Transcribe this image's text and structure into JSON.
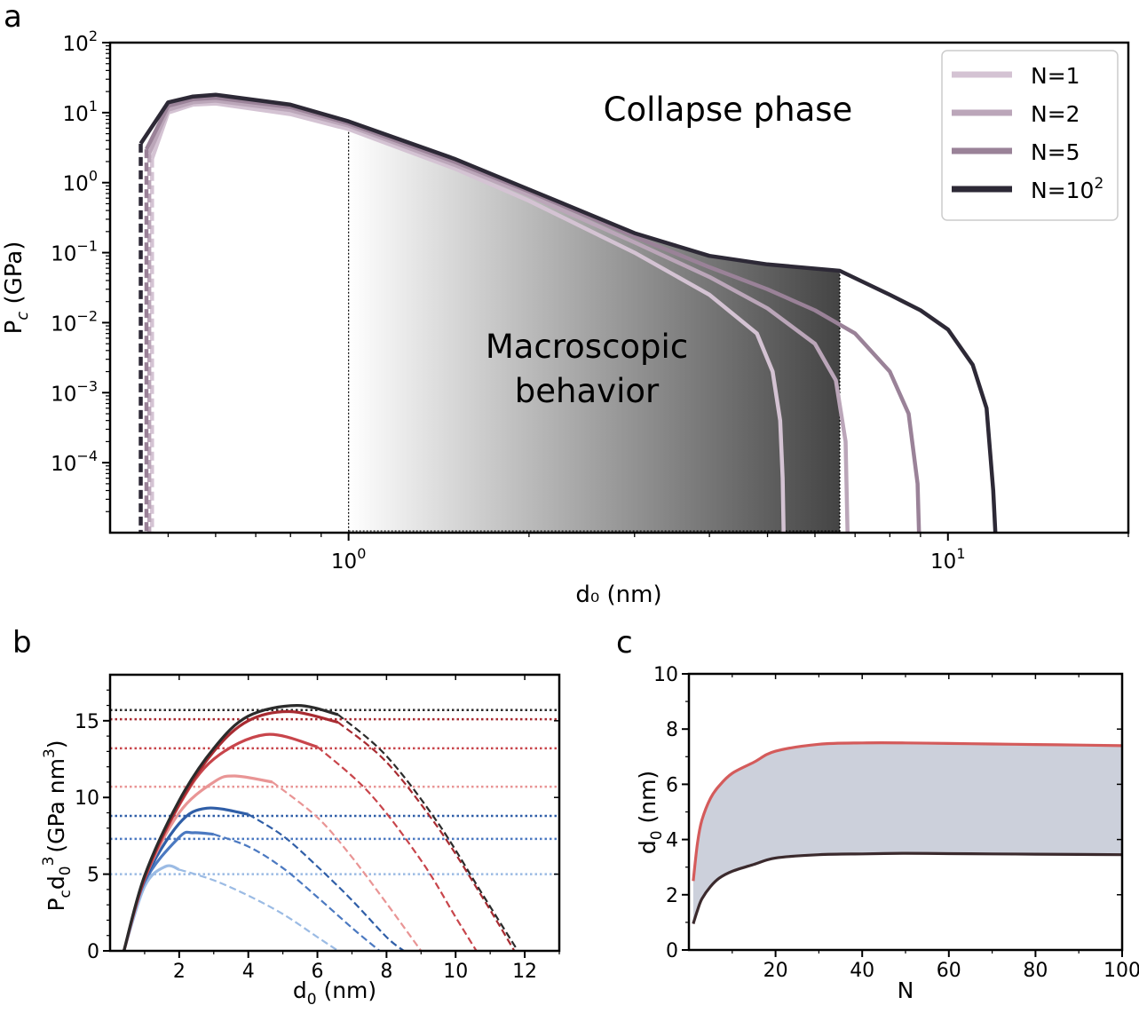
{
  "panels": {
    "a": "a",
    "b": "b",
    "c": "c"
  },
  "chart_data": [
    {
      "id": "a",
      "type": "line",
      "xscale": "log",
      "yscale": "log",
      "xlabel": "d₀ (nm)",
      "ylabel": "P",
      "ylabel_sub": "c",
      "ylabel_unit": " (GPa)",
      "xlim": [
        0.4,
        20
      ],
      "ylim": [
        1e-05,
        100
      ],
      "x_ticks": [
        {
          "v": 1,
          "base": "10",
          "exp": "0"
        },
        {
          "v": 10,
          "base": "10",
          "exp": "1"
        }
      ],
      "y_ticks": [
        {
          "v": 100,
          "base": "10",
          "exp": "2"
        },
        {
          "v": 10,
          "base": "10",
          "exp": "1"
        },
        {
          "v": 1,
          "base": "10",
          "exp": "0"
        },
        {
          "v": 0.1,
          "base": "10",
          "exp": "−1"
        },
        {
          "v": 0.01,
          "base": "10",
          "exp": "−2"
        },
        {
          "v": 0.001,
          "base": "10",
          "exp": "−3"
        },
        {
          "v": 0.0001,
          "base": "10",
          "exp": "−4"
        }
      ],
      "annotations": {
        "collapse": "Collapse phase",
        "macro_1": "Macroscopic",
        "macro_2": "behavior"
      },
      "shaded_region": {
        "x": [
          1.0,
          6.6
        ]
      },
      "legend_placement": "top-right",
      "series": [
        {
          "name": "N=1",
          "label_text": "N=1",
          "color": "#d4c3d3",
          "x": [
            0.47,
            0.5,
            0.55,
            0.6,
            0.8,
            1.0,
            1.5,
            2.0,
            3.0,
            4.0,
            4.8,
            5.1,
            5.25,
            5.3,
            5.32
          ],
          "y": [
            2.2,
            10.0,
            13.0,
            13.5,
            9.5,
            5.8,
            1.6,
            0.55,
            0.1,
            0.025,
            0.007,
            0.002,
            0.0004,
            6e-05,
            1e-05
          ]
        },
        {
          "name": "N=2",
          "label_text": "N=2",
          "color": "#bba6b9",
          "x": [
            0.465,
            0.5,
            0.55,
            0.6,
            0.8,
            1.0,
            1.5,
            2.0,
            3.0,
            4.0,
            5.0,
            6.0,
            6.5,
            6.75,
            6.8
          ],
          "y": [
            2.6,
            11.0,
            14.0,
            14.8,
            10.8,
            6.5,
            1.8,
            0.66,
            0.14,
            0.045,
            0.016,
            0.005,
            0.0015,
            0.0002,
            1e-05
          ]
        },
        {
          "name": "N=5",
          "label_text": "N=5",
          "color": "#9a8298",
          "x": [
            0.46,
            0.5,
            0.55,
            0.6,
            0.8,
            1.0,
            1.5,
            2.0,
            3.0,
            4.0,
            5.0,
            6.0,
            7.0,
            8.0,
            8.6,
            8.9,
            8.95
          ],
          "y": [
            3.0,
            12.5,
            15.5,
            16.3,
            12.0,
            7.0,
            2.0,
            0.75,
            0.17,
            0.062,
            0.03,
            0.015,
            0.007,
            0.002,
            0.0005,
            5e-05,
            1e-05
          ]
        },
        {
          "name": "N=10²",
          "label_text": "N=10",
          "label_exp": "2",
          "color": "#2d2936",
          "x": [
            0.45,
            0.5,
            0.55,
            0.6,
            0.8,
            1.0,
            1.5,
            2.0,
            3.0,
            4.0,
            5.0,
            6.6,
            8.0,
            9.0,
            10.0,
            11.0,
            11.6,
            11.9,
            12.0
          ],
          "y": [
            3.6,
            14.0,
            17.0,
            18.0,
            13.0,
            7.5,
            2.2,
            0.8,
            0.19,
            0.09,
            0.068,
            0.055,
            0.025,
            0.015,
            0.008,
            0.0025,
            0.0006,
            4e-05,
            1e-05
          ]
        }
      ]
    },
    {
      "id": "b",
      "type": "line",
      "xlabel_base": "d",
      "xlabel_sub": "0",
      "xlabel_unit": " (nm)",
      "ylabel_main": "P",
      "ylabel_sub1": "c",
      "ylabel_d": "d",
      "ylabel_sub2": "0",
      "ylabel_exp": "3",
      "ylabel_unit": "(GPa nm",
      "ylabel_unit_exp": "3",
      "ylabel_close": ")",
      "xlim": [
        0,
        13
      ],
      "ylim": [
        0,
        18
      ],
      "x_ticks": [
        2,
        4,
        6,
        8,
        10,
        12
      ],
      "y_ticks": [
        0,
        5,
        10,
        15
      ],
      "series": [
        {
          "color": "#9bbbe4",
          "solid_end": 2.0,
          "x": [
            0.4,
            1.0,
            1.6,
            2.0,
            3.0,
            4.0,
            5.0,
            6.0,
            6.6
          ],
          "y": [
            0,
            4.2,
            5.5,
            5.3,
            4.6,
            3.6,
            2.4,
            0.9,
            0.0
          ]
        },
        {
          "color": "#4b79c1",
          "solid_end": 3.0,
          "x": [
            0.4,
            1.0,
            2.0,
            2.4,
            3.0,
            4.0,
            5.0,
            6.0,
            7.0,
            7.8
          ],
          "y": [
            0,
            4.5,
            7.4,
            7.7,
            7.6,
            6.8,
            5.4,
            3.5,
            1.5,
            0.0
          ]
        },
        {
          "color": "#2f5ea7",
          "solid_end": 4.0,
          "x": [
            0.4,
            1.0,
            2.0,
            2.8,
            4.0,
            5.0,
            6.0,
            7.0,
            8.0,
            8.5
          ],
          "y": [
            0,
            4.6,
            8.3,
            9.3,
            8.9,
            7.5,
            5.5,
            3.3,
            0.9,
            0.0
          ]
        },
        {
          "color": "#e99595",
          "solid_end": 4.7,
          "x": [
            0.4,
            1.0,
            2.0,
            3.0,
            3.6,
            4.7,
            6.0,
            7.0,
            8.0,
            9.0
          ],
          "y": [
            0,
            4.7,
            9.0,
            11.0,
            11.4,
            11.0,
            8.7,
            6.1,
            3.1,
            0.0
          ]
        },
        {
          "color": "#c8454b",
          "solid_end": 6.0,
          "x": [
            0.4,
            1.0,
            2.0,
            3.0,
            4.5,
            6.0,
            7.5,
            9.0,
            10.0,
            10.6
          ],
          "y": [
            0,
            4.7,
            9.5,
            12.5,
            14.1,
            13.3,
            10.3,
            5.9,
            2.2,
            0.0
          ]
        },
        {
          "color": "#a82b31",
          "solid_end": 6.6,
          "x": [
            0.4,
            1.0,
            2.0,
            3.0,
            4.0,
            5.2,
            6.6,
            8.0,
            9.5,
            10.8,
            11.7
          ],
          "y": [
            0,
            4.8,
            9.6,
            13.0,
            15.0,
            15.6,
            14.9,
            12.3,
            8.0,
            3.4,
            0.0
          ]
        },
        {
          "color": "#2b2b2b",
          "solid_end": 6.6,
          "x": [
            0.4,
            1.0,
            2.0,
            3.0,
            4.0,
            5.4,
            6.6,
            8.0,
            9.5,
            10.8,
            11.8
          ],
          "y": [
            0,
            4.9,
            9.8,
            13.2,
            15.3,
            16.0,
            15.4,
            12.7,
            8.3,
            3.6,
            0.0
          ]
        }
      ],
      "hlines": [
        {
          "y": 5.0,
          "color": "#9bbbe4"
        },
        {
          "y": 7.3,
          "color": "#4b79c1"
        },
        {
          "y": 8.8,
          "color": "#2f5ea7"
        },
        {
          "y": 10.7,
          "color": "#e99595"
        },
        {
          "y": 13.2,
          "color": "#c8454b"
        },
        {
          "y": 15.1,
          "color": "#a82b31"
        },
        {
          "y": 15.7,
          "color": "#2b2b2b"
        }
      ]
    },
    {
      "id": "c",
      "type": "area",
      "xlabel": "N",
      "ylabel_base": "d",
      "ylabel_sub": "0",
      "ylabel_unit": " (nm)",
      "xlim": [
        0,
        100
      ],
      "ylim": [
        0,
        10
      ],
      "x_ticks": [
        20,
        40,
        60,
        80,
        100
      ],
      "y_ticks": [
        0,
        2,
        4,
        6,
        8,
        10
      ],
      "fill_color": "#ccd0db",
      "series": [
        {
          "role": "upper",
          "color": "#d45b5b",
          "x": [
            1,
            2,
            3,
            5,
            7,
            10,
            15,
            20,
            30,
            40,
            50,
            60,
            70,
            80,
            90,
            100
          ],
          "y": [
            2.5,
            3.9,
            4.7,
            5.5,
            5.95,
            6.4,
            6.8,
            7.2,
            7.45,
            7.5,
            7.5,
            7.48,
            7.46,
            7.44,
            7.42,
            7.4
          ]
        },
        {
          "role": "lower",
          "color": "#3b2a2d",
          "x": [
            1,
            2,
            3,
            5,
            7,
            10,
            15,
            20,
            30,
            40,
            50,
            60,
            70,
            80,
            90,
            100
          ],
          "y": [
            0.95,
            1.45,
            1.85,
            2.3,
            2.6,
            2.85,
            3.1,
            3.33,
            3.45,
            3.48,
            3.5,
            3.49,
            3.48,
            3.47,
            3.46,
            3.45
          ]
        }
      ]
    }
  ]
}
